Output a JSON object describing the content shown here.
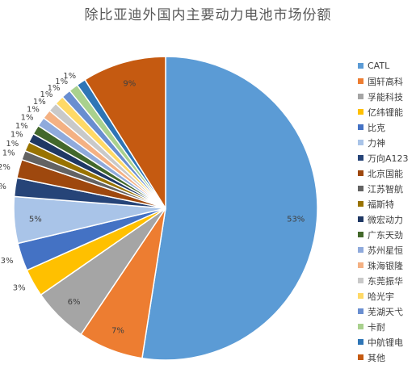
{
  "chart_data": {
    "type": "pie",
    "title": "除比亚迪外国内主要动力电池市场份额",
    "legend_position": "right",
    "slices": [
      {
        "name": "CATL",
        "value": 53,
        "label": "53%",
        "color": "#5B9BD5"
      },
      {
        "name": "国轩高科",
        "value": 7,
        "label": "7%",
        "color": "#ED7D31"
      },
      {
        "name": "孚能科技",
        "value": 6,
        "label": "6%",
        "color": "#A5A5A5"
      },
      {
        "name": "亿纬锂能",
        "value": 3,
        "label": "3%",
        "color": "#FFC000"
      },
      {
        "name": "比克",
        "value": 3,
        "label": "3%",
        "color": "#4472C4"
      },
      {
        "name": "力神",
        "value": 5,
        "label": "5%",
        "color": "#A9C4E8"
      },
      {
        "name": "万向A123",
        "value": 2,
        "label": "2%",
        "color": "#264478"
      },
      {
        "name": "北京国能",
        "value": 2,
        "label": "2%",
        "color": "#9E480E"
      },
      {
        "name": "江苏智航",
        "value": 1,
        "label": "1%",
        "color": "#636363"
      },
      {
        "name": "福斯特",
        "value": 1,
        "label": "1%",
        "color": "#997300"
      },
      {
        "name": "微宏动力",
        "value": 1,
        "label": "1%",
        "color": "#1F3864"
      },
      {
        "name": "广东天劲",
        "value": 1,
        "label": "1%",
        "color": "#43682B"
      },
      {
        "name": "苏州星恒",
        "value": 1,
        "label": "1%",
        "color": "#8FAADC"
      },
      {
        "name": "珠海银隆",
        "value": 1,
        "label": "1%",
        "color": "#F4B183"
      },
      {
        "name": "东莞振华",
        "value": 1,
        "label": "1%",
        "color": "#C9C9C9"
      },
      {
        "name": "哈光宇",
        "value": 1,
        "label": "1%",
        "color": "#FFD966"
      },
      {
        "name": "芜湖天弋",
        "value": 1,
        "label": "1%",
        "color": "#698ED0"
      },
      {
        "name": "卡耐",
        "value": 1,
        "label": "1%",
        "color": "#A9D18E"
      },
      {
        "name": "中航锂电",
        "value": 1,
        "label": "1%",
        "color": "#2E75B6"
      },
      {
        "name": "其他",
        "value": 9,
        "label": "9%",
        "color": "#C55A11"
      }
    ]
  }
}
